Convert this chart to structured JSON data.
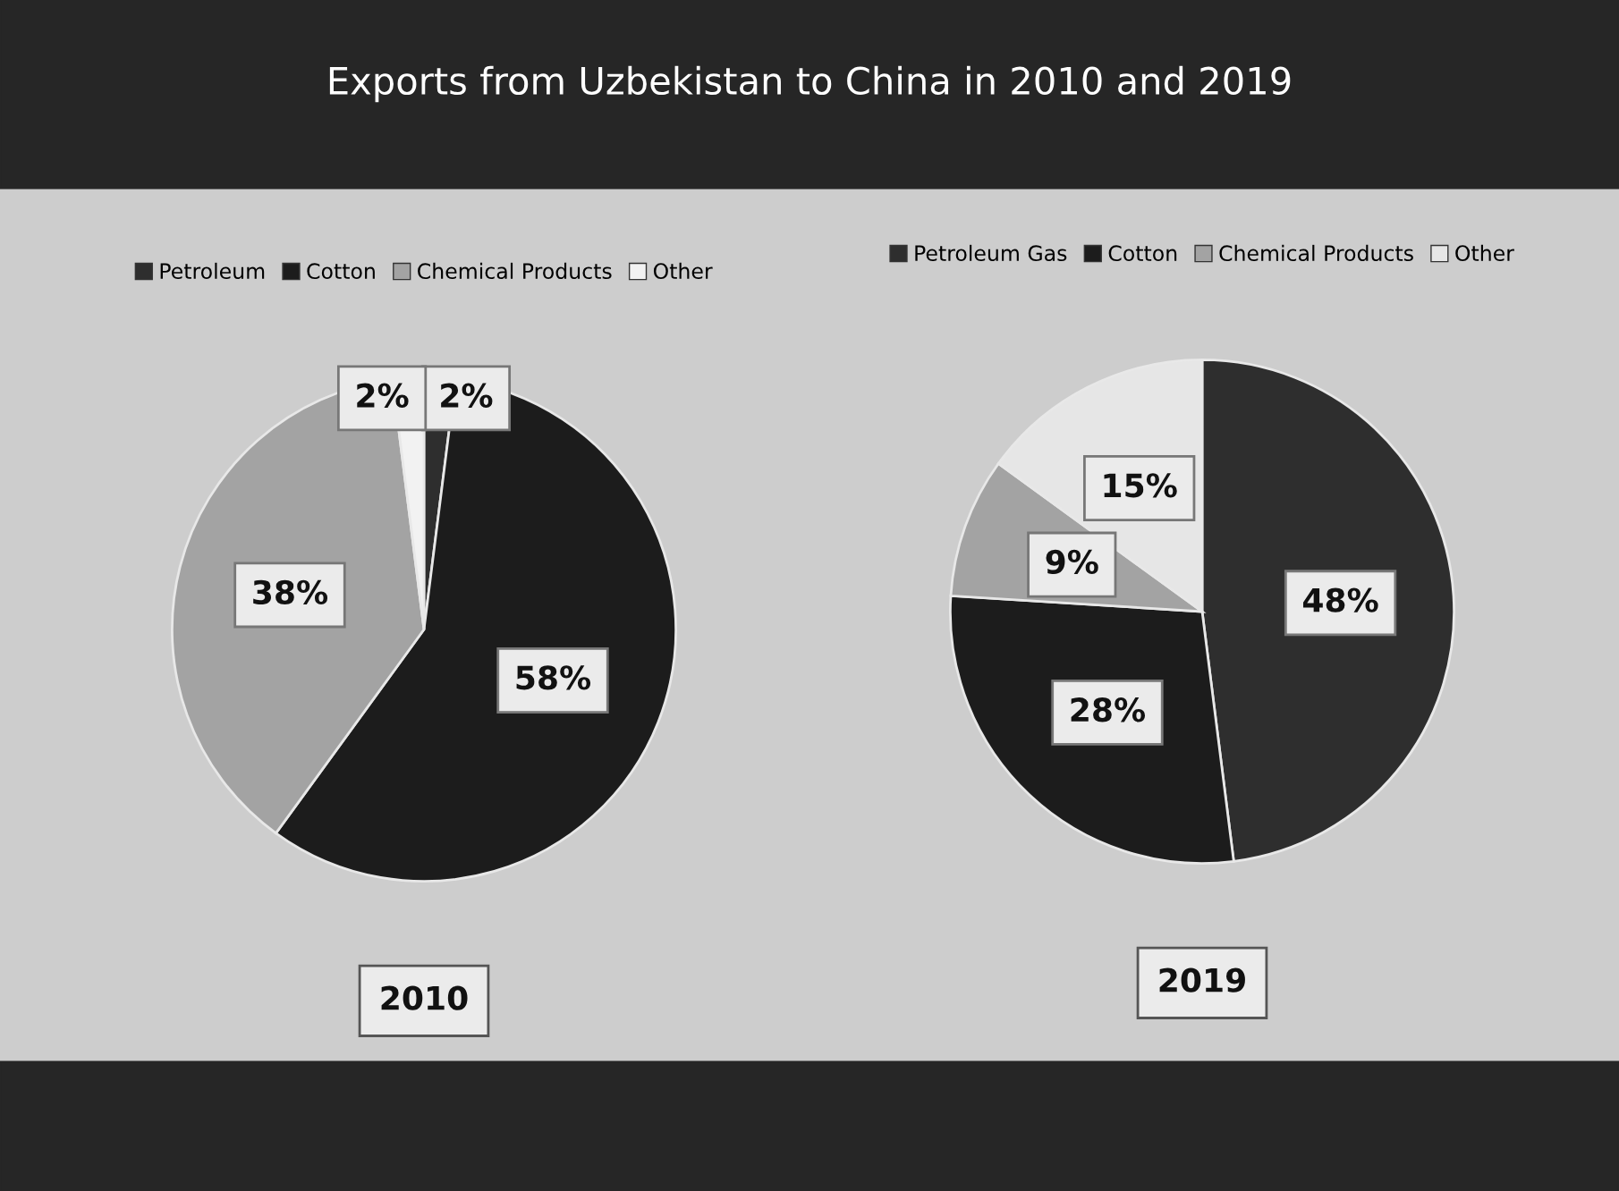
{
  "chart_data": [
    {
      "type": "pie",
      "title": "2010",
      "annotations": [
        "Exports from Uzbekistan to China in 2010 and 2019"
      ],
      "categories": [
        "Petroleum",
        "Cotton",
        "Chemical Products",
        "Other"
      ],
      "values": [
        2,
        58,
        38,
        2
      ],
      "colors": [
        "#2e2e2e",
        "#1c1c1c",
        "#a3a3a3",
        "#f2f2f2"
      ],
      "value_labels": [
        "2%",
        "58%",
        "38%",
        "2%"
      ],
      "legend": "top"
    },
    {
      "type": "pie",
      "title": "2019",
      "categories": [
        "Petroleum Gas",
        "Cotton",
        "Chemical Products",
        "Other"
      ],
      "values": [
        48,
        28,
        9,
        15
      ],
      "colors": [
        "#2e2e2e",
        "#1c1c1c",
        "#a3a3a3",
        "#e6e6e6"
      ],
      "value_labels": [
        "48%",
        "28%",
        "9%",
        "15%"
      ],
      "legend": "top"
    }
  ]
}
